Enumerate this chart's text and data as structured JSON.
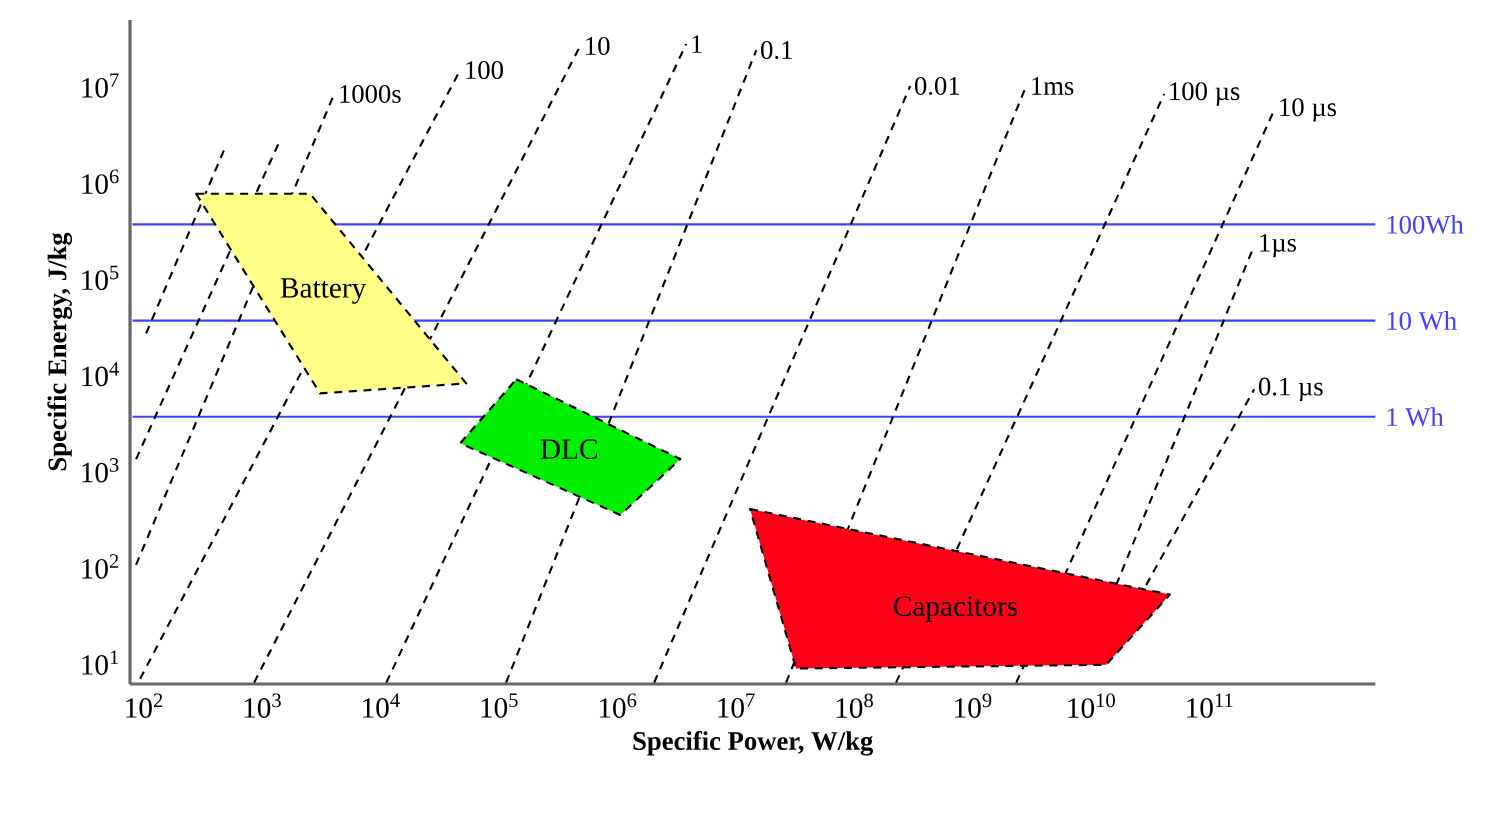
{
  "chart_data": {
    "type": "line",
    "xlabel": "Specific Power, W/kg",
    "ylabel": "Specific Energy, J/kg",
    "log": "xy",
    "xlim": [
      76,
      2500000000000.0
    ],
    "ylim": [
      6,
      48000000.0
    ],
    "xticks": [
      {
        "value": 100,
        "label": "10$^{2}$"
      },
      {
        "value": 1000,
        "label": "10$^{3}$"
      },
      {
        "value": 10000,
        "label": "10$^{4}$"
      },
      {
        "value": 100000,
        "label": "10$^{5}$"
      },
      {
        "value": 1000000,
        "label": "10$^{6}$"
      },
      {
        "value": 10000000,
        "label": "10$^{7}$"
      },
      {
        "value": 100000000,
        "label": "10$^{8}$"
      },
      {
        "value": 1000000000,
        "label": "10$^{9}$"
      },
      {
        "value": 10000000000,
        "label": "10$^{10}$"
      },
      {
        "value": 100000000000,
        "label": "10$^{11}$"
      }
    ],
    "yticks": [
      {
        "value": 10,
        "label": "10$^{1}$"
      },
      {
        "value": 100,
        "label": "10$^{2}$"
      },
      {
        "value": 1000,
        "label": "10$^{3}$"
      },
      {
        "value": 10000,
        "label": "10$^{4}$"
      },
      {
        "value": 100000,
        "label": "10$^{5}$"
      },
      {
        "value": 1000000,
        "label": "10$^{6}$"
      },
      {
        "value": 10000000,
        "label": "10$^{7}$"
      }
    ],
    "ref_lines": [
      {
        "axis": "y",
        "value": 360000,
        "label": "100Wh",
        "color": "#4040ff"
      },
      {
        "axis": "y",
        "value": 36000,
        "label": "10  Wh",
        "color": "#4040ff"
      },
      {
        "axis": "y",
        "value": 3600,
        "label": "1   Wh",
        "color": "#4040ff"
      }
    ],
    "series": [
      {
        "color": "#000000",
        "line_style": "dashed",
        "x": [
          104,
          474
        ],
        "values": [
          26500,
          2150000
        ]
      },
      {
        "color": "#000000",
        "line_style": "dashed",
        "x": [
          85.5,
          1410
        ],
        "values": [
          1306,
          2730000
        ]
      },
      {
        "name": "1000s",
        "color": "#000000",
        "line_style": "dashed",
        "x": [
          85.5,
          4030
        ],
        "values": [
          104,
          8180000
        ]
      },
      {
        "name": "100",
        "color": "#000000",
        "line_style": "dashed",
        "x": [
          92.5,
          46700
        ],
        "values": [
          6.8,
          14500000
        ]
      },
      {
        "name": "10",
        "color": "#000000",
        "line_style": "dashed",
        "x": [
          849,
          481000
        ],
        "values": [
          6.2,
          25800000
        ]
      },
      {
        "name": "1",
        "color": "#000000",
        "line_style": "dashed",
        "x": [
          11100,
          3780000
        ],
        "values": [
          6.2,
          27000000
        ]
      },
      {
        "name": "0.1",
        "color": "#000000",
        "line_style": "dashed",
        "x": [
          114000,
          14800000
        ],
        "values": [
          6.2,
          23400000
        ]
      },
      {
        "name": "0.01",
        "color": "#000000",
        "line_style": "dashed",
        "x": [
          2030000,
          295000000
        ],
        "values": [
          6.2,
          9900000
        ]
      },
      {
        "name": "1ms",
        "color": "#000000",
        "line_style": "dashed",
        "x": [
          26400000,
          2810000000
        ],
        "values": [
          6.2,
          9900000
        ]
      },
      {
        "name": "100 µs",
        "color": "#000000",
        "line_style": "dashed",
        "x": [
          224000000,
          41200000000
        ],
        "values": [
          6.2,
          8180000
        ]
      },
      {
        "name": "10 µs",
        "color": "#000000",
        "line_style": "dashed",
        "x": [
          2320000000,
          350000000000
        ],
        "values": [
          6.2,
          5580000
        ]
      },
      {
        "name": "1µs",
        "color": "#000000",
        "line_style": "dashed",
        "x": [
          16200000000,
          237000000000
        ],
        "values": [
          64,
          217000
        ]
      },
      {
        "name": "0.1 µs",
        "color": "#000000",
        "line_style": "dashed",
        "x": [
          29000000000,
          237000000000
        ],
        "values": [
          64,
          6950
        ]
      },
      {
        "type": "area",
        "name": "Battery",
        "color": "#ffff88",
        "line_style": "dashed",
        "x": [
          275,
          2520,
          52500,
          3060
        ],
        "values": [
          750000,
          750000,
          8000,
          6300
        ]
      },
      {
        "type": "area",
        "name": "DLC",
        "color": "#00ee00",
        "line_style": "dashed",
        "x": [
          139000,
          3370000,
          1050000,
          46700
        ],
        "values": [
          8830,
          1310,
          343,
          1910
        ]
      },
      {
        "type": "area",
        "name": "Capacitors",
        "color": "#ff0019",
        "line_style": "dashed",
        "x": [
          13100000,
          46000000000,
          13300000000,
          32000000
        ],
        "values": [
          396,
          51,
          9.5,
          8.7
        ]
      }
    ]
  }
}
